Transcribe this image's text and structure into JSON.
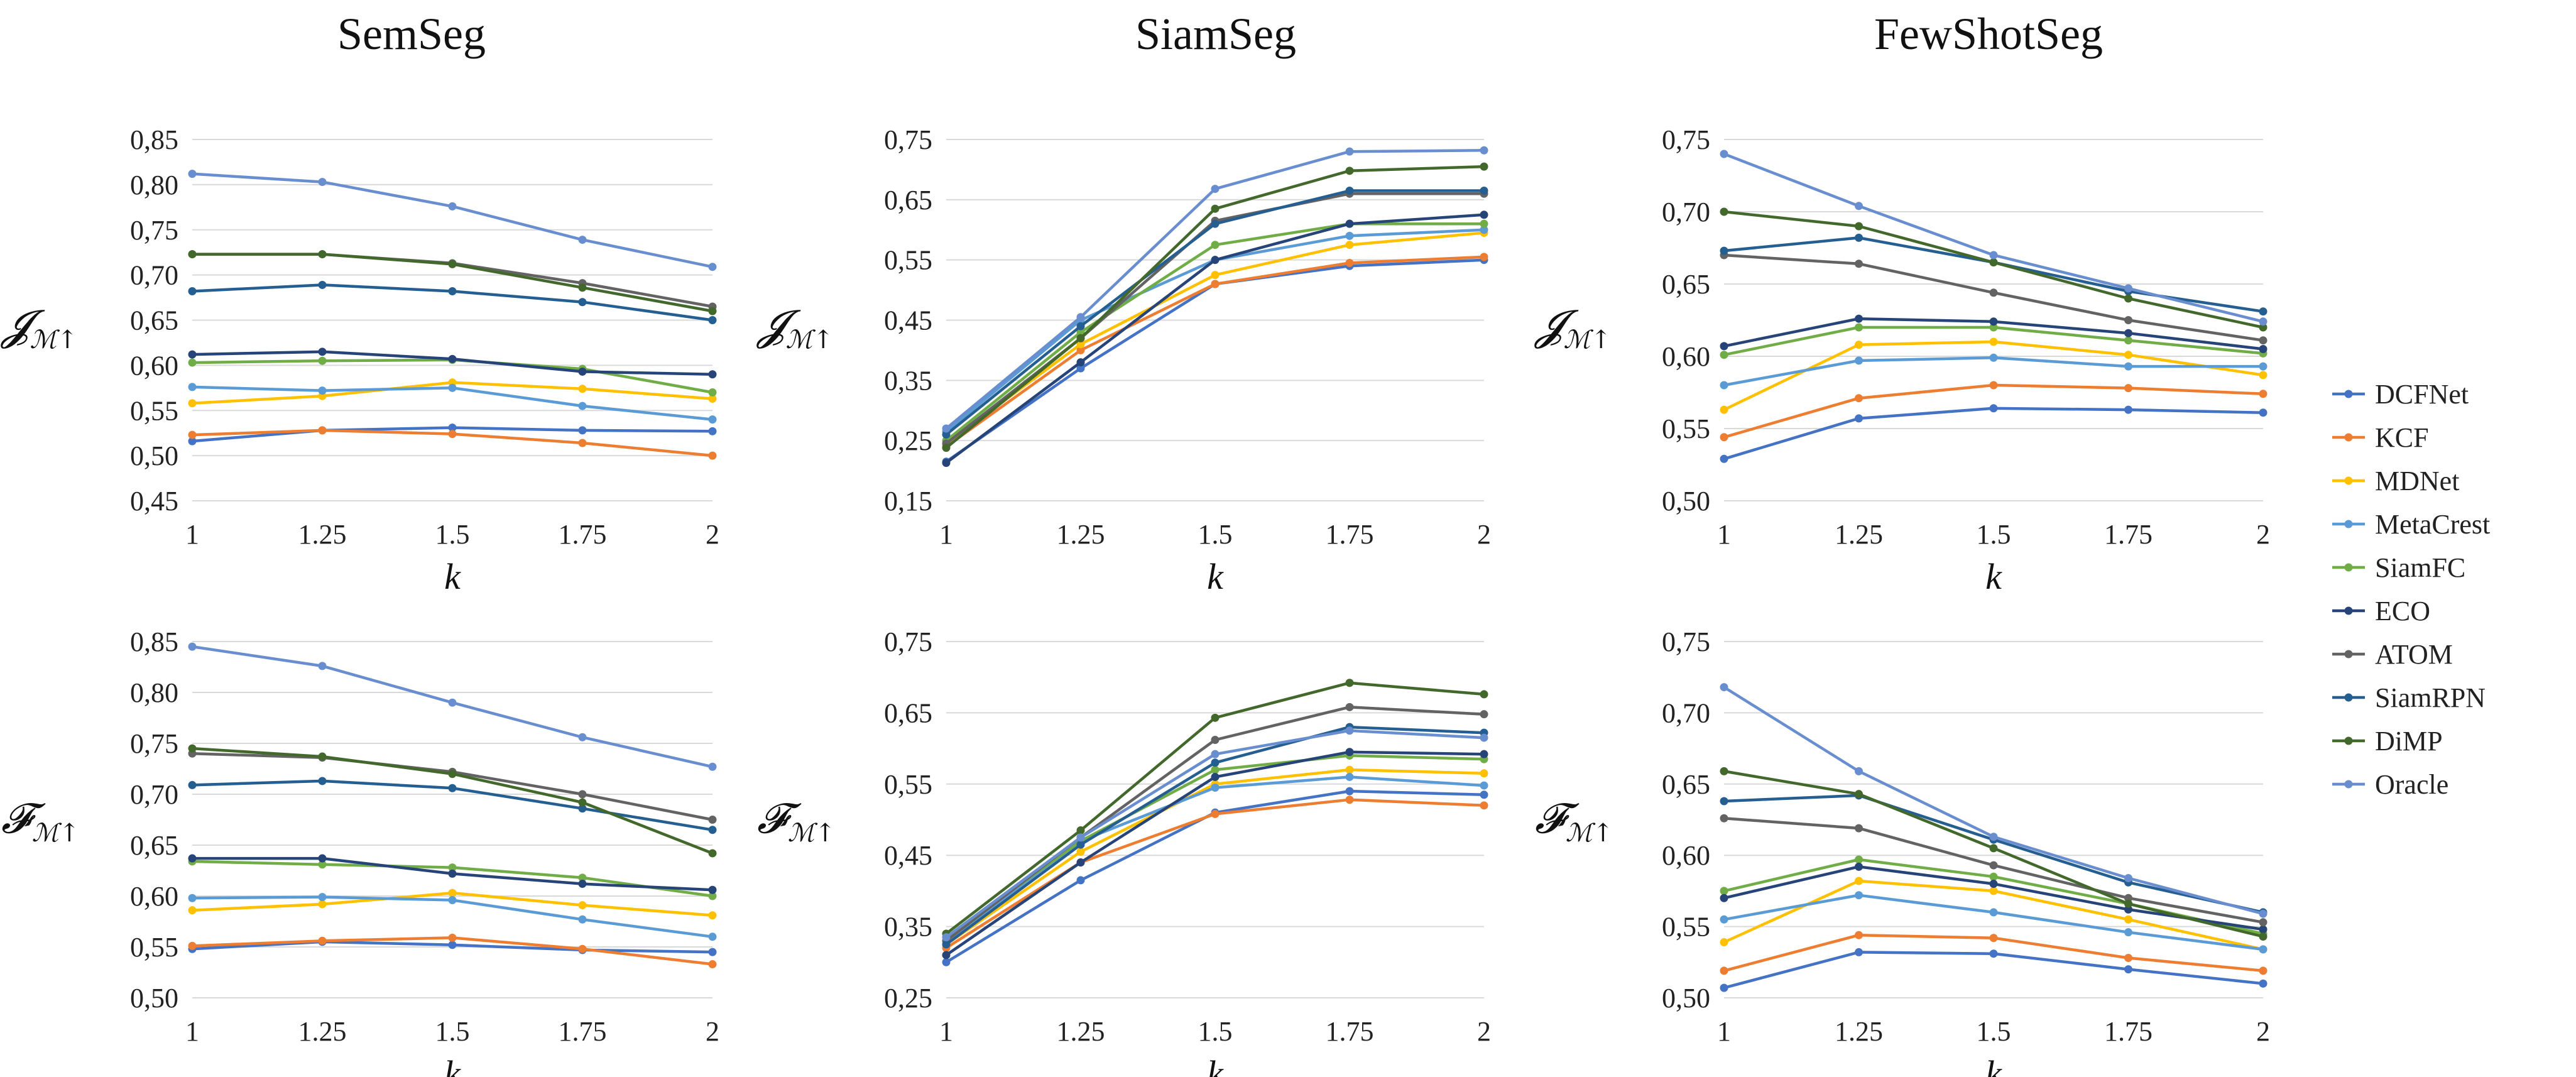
{
  "column_titles": [
    "SemSeg",
    "SiamSeg",
    "FewShotSeg"
  ],
  "row_metrics": [
    {
      "symbol": "𝓙",
      "subscript": "ℳ↑"
    },
    {
      "symbol": "𝓕",
      "subscript": "ℳ↑"
    }
  ],
  "legend": [
    {
      "name": "DCFNet",
      "color": "#4472C4"
    },
    {
      "name": "KCF",
      "color": "#ED7D31"
    },
    {
      "name": "MDNet",
      "color": "#FFC000"
    },
    {
      "name": "MetaCrest",
      "color": "#5B9BD5"
    },
    {
      "name": "SiamFC",
      "color": "#70AD47"
    },
    {
      "name": "ECO",
      "color": "#264478"
    },
    {
      "name": "ATOM",
      "color": "#636363"
    },
    {
      "name": "SiamRPN",
      "color": "#255E91"
    },
    {
      "name": "DiMP",
      "color": "#43682B"
    },
    {
      "name": "Oracle",
      "color": "#698ED0"
    }
  ],
  "chart_data": [
    {
      "type": "line",
      "title": "SemSeg",
      "xlabel": "k",
      "ylabel": "J_M↑",
      "categories": [
        "1",
        "1.25",
        "1.5",
        "1.75",
        "2"
      ],
      "yticks": [
        "0,45",
        "0,50",
        "0,55",
        "0,60",
        "0,65",
        "0,70",
        "0,75",
        "0,80",
        "0,85"
      ],
      "ylim": [
        0.45,
        0.85
      ],
      "series": [
        {
          "name": "DCFNet",
          "values": [
            0.516,
            0.528,
            0.531,
            0.528,
            0.527
          ]
        },
        {
          "name": "KCF",
          "values": [
            0.523,
            0.528,
            0.524,
            0.514,
            0.5
          ]
        },
        {
          "name": "MDNet",
          "values": [
            0.558,
            0.566,
            0.581,
            0.574,
            0.563
          ]
        },
        {
          "name": "MetaCrest",
          "values": [
            0.576,
            0.572,
            0.575,
            0.555,
            0.54
          ]
        },
        {
          "name": "SiamFC",
          "values": [
            0.603,
            0.605,
            0.606,
            0.596,
            0.57
          ]
        },
        {
          "name": "ECO",
          "values": [
            0.612,
            0.615,
            0.607,
            0.593,
            0.59
          ]
        },
        {
          "name": "ATOM",
          "values": [
            0.723,
            0.723,
            0.713,
            0.691,
            0.665
          ]
        },
        {
          "name": "SiamRPN",
          "values": [
            0.682,
            0.689,
            0.682,
            0.67,
            0.65
          ]
        },
        {
          "name": "DiMP",
          "values": [
            0.723,
            0.723,
            0.712,
            0.686,
            0.66
          ]
        },
        {
          "name": "Oracle",
          "values": [
            0.812,
            0.803,
            0.776,
            0.739,
            0.709
          ]
        }
      ]
    },
    {
      "type": "line",
      "title": "SiamSeg",
      "xlabel": "k",
      "ylabel": "J_M↑",
      "categories": [
        "1",
        "1.25",
        "1.5",
        "1.75",
        "2"
      ],
      "yticks": [
        "0,15",
        "0,25",
        "0,35",
        "0,45",
        "0,55",
        "0,65",
        "0,75"
      ],
      "ylim": [
        0.15,
        0.75
      ],
      "series": [
        {
          "name": "DCFNet",
          "values": [
            0.215,
            0.37,
            0.51,
            0.54,
            0.55
          ]
        },
        {
          "name": "KCF",
          "values": [
            0.24,
            0.4,
            0.51,
            0.545,
            0.555
          ]
        },
        {
          "name": "MDNet",
          "values": [
            0.245,
            0.41,
            0.525,
            0.575,
            0.595
          ]
        },
        {
          "name": "MetaCrest",
          "values": [
            0.265,
            0.45,
            0.55,
            0.59,
            0.6
          ]
        },
        {
          "name": "SiamFC",
          "values": [
            0.25,
            0.43,
            0.575,
            0.61,
            0.61
          ]
        },
        {
          "name": "ECO",
          "values": [
            0.213,
            0.38,
            0.55,
            0.61,
            0.625
          ]
        },
        {
          "name": "ATOM",
          "values": [
            0.245,
            0.42,
            0.615,
            0.66,
            0.66
          ]
        },
        {
          "name": "SiamRPN",
          "values": [
            0.26,
            0.44,
            0.61,
            0.665,
            0.665
          ]
        },
        {
          "name": "DiMP",
          "values": [
            0.238,
            0.42,
            0.635,
            0.698,
            0.705
          ]
        },
        {
          "name": "Oracle",
          "values": [
            0.27,
            0.455,
            0.668,
            0.73,
            0.732
          ]
        }
      ]
    },
    {
      "type": "line",
      "title": "FewShotSeg",
      "xlabel": "k",
      "ylabel": "J_M↑",
      "categories": [
        "1",
        "1.25",
        "1.5",
        "1.75",
        "2"
      ],
      "yticks": [
        "0,50",
        "0,55",
        "0,60",
        "0,65",
        "0,70",
        "0,75"
      ],
      "ylim": [
        0.5,
        0.75
      ],
      "series": [
        {
          "name": "DCFNet",
          "values": [
            0.529,
            0.557,
            0.564,
            0.563,
            0.561
          ]
        },
        {
          "name": "KCF",
          "values": [
            0.544,
            0.571,
            0.58,
            0.578,
            0.574
          ]
        },
        {
          "name": "MDNet",
          "values": [
            0.563,
            0.608,
            0.61,
            0.601,
            0.587
          ]
        },
        {
          "name": "MetaCrest",
          "values": [
            0.58,
            0.597,
            0.599,
            0.593,
            0.593
          ]
        },
        {
          "name": "SiamFC",
          "values": [
            0.601,
            0.62,
            0.62,
            0.611,
            0.602
          ]
        },
        {
          "name": "ECO",
          "values": [
            0.607,
            0.626,
            0.624,
            0.616,
            0.605
          ]
        },
        {
          "name": "ATOM",
          "values": [
            0.67,
            0.664,
            0.644,
            0.625,
            0.611
          ]
        },
        {
          "name": "SiamRPN",
          "values": [
            0.673,
            0.682,
            0.665,
            0.645,
            0.631
          ]
        },
        {
          "name": "DiMP",
          "values": [
            0.7,
            0.69,
            0.665,
            0.64,
            0.62
          ]
        },
        {
          "name": "Oracle",
          "values": [
            0.74,
            0.704,
            0.67,
            0.647,
            0.624
          ]
        }
      ]
    },
    {
      "type": "line",
      "title": "SemSeg",
      "xlabel": "k",
      "ylabel": "F_M↑",
      "categories": [
        "1",
        "1.25",
        "1.5",
        "1.75",
        "2"
      ],
      "yticks": [
        "0,50",
        "0,55",
        "0,60",
        "0,65",
        "0,70",
        "0,75",
        "0,80",
        "0,85"
      ],
      "ylim": [
        0.5,
        0.85
      ],
      "series": [
        {
          "name": "DCFNet",
          "values": [
            0.548,
            0.555,
            0.552,
            0.547,
            0.545
          ]
        },
        {
          "name": "KCF",
          "values": [
            0.551,
            0.556,
            0.559,
            0.548,
            0.533
          ]
        },
        {
          "name": "MDNet",
          "values": [
            0.586,
            0.592,
            0.603,
            0.591,
            0.581
          ]
        },
        {
          "name": "MetaCrest",
          "values": [
            0.598,
            0.599,
            0.596,
            0.577,
            0.56
          ]
        },
        {
          "name": "SiamFC",
          "values": [
            0.634,
            0.631,
            0.628,
            0.618,
            0.6
          ]
        },
        {
          "name": "ECO",
          "values": [
            0.637,
            0.637,
            0.622,
            0.612,
            0.606
          ]
        },
        {
          "name": "ATOM",
          "values": [
            0.74,
            0.736,
            0.722,
            0.7,
            0.675
          ]
        },
        {
          "name": "SiamRPN",
          "values": [
            0.709,
            0.713,
            0.706,
            0.686,
            0.665
          ]
        },
        {
          "name": "DiMP",
          "values": [
            0.745,
            0.737,
            0.72,
            0.692,
            0.642
          ]
        },
        {
          "name": "Oracle",
          "values": [
            0.845,
            0.826,
            0.79,
            0.756,
            0.727
          ]
        }
      ]
    },
    {
      "type": "line",
      "title": "SiamSeg",
      "xlabel": "k",
      "ylabel": "F_M↑",
      "categories": [
        "1",
        "1.25",
        "1.5",
        "1.75",
        "2"
      ],
      "yticks": [
        "0,25",
        "0,35",
        "0,45",
        "0,55",
        "0,65",
        "0,75"
      ],
      "ylim": [
        0.25,
        0.75
      ],
      "series": [
        {
          "name": "DCFNet",
          "values": [
            0.3,
            0.415,
            0.51,
            0.54,
            0.535
          ]
        },
        {
          "name": "KCF",
          "values": [
            0.32,
            0.44,
            0.508,
            0.528,
            0.52
          ]
        },
        {
          "name": "MDNet",
          "values": [
            0.325,
            0.455,
            0.55,
            0.57,
            0.565
          ]
        },
        {
          "name": "MetaCrest",
          "values": [
            0.33,
            0.47,
            0.545,
            0.56,
            0.548
          ]
        },
        {
          "name": "SiamFC",
          "values": [
            0.335,
            0.47,
            0.57,
            0.59,
            0.585
          ]
        },
        {
          "name": "ECO",
          "values": [
            0.31,
            0.44,
            0.56,
            0.595,
            0.592
          ]
        },
        {
          "name": "ATOM",
          "values": [
            0.33,
            0.475,
            0.612,
            0.658,
            0.648
          ]
        },
        {
          "name": "SiamRPN",
          "values": [
            0.325,
            0.465,
            0.58,
            0.63,
            0.622
          ]
        },
        {
          "name": "DiMP",
          "values": [
            0.34,
            0.485,
            0.643,
            0.692,
            0.676
          ]
        },
        {
          "name": "Oracle",
          "values": [
            0.335,
            0.475,
            0.592,
            0.625,
            0.615
          ]
        }
      ]
    },
    {
      "type": "line",
      "title": "FewShotSeg",
      "xlabel": "k",
      "ylabel": "F_M↑",
      "categories": [
        "1",
        "1.25",
        "1.5",
        "1.75",
        "2"
      ],
      "yticks": [
        "0,50",
        "0,55",
        "0,60",
        "0,65",
        "0,70",
        "0,75"
      ],
      "ylim": [
        0.5,
        0.75
      ],
      "series": [
        {
          "name": "DCFNet",
          "values": [
            0.507,
            0.532,
            0.531,
            0.52,
            0.51
          ]
        },
        {
          "name": "KCF",
          "values": [
            0.519,
            0.544,
            0.542,
            0.528,
            0.519
          ]
        },
        {
          "name": "MDNet",
          "values": [
            0.539,
            0.582,
            0.575,
            0.555,
            0.534
          ]
        },
        {
          "name": "MetaCrest",
          "values": [
            0.555,
            0.572,
            0.56,
            0.546,
            0.534
          ]
        },
        {
          "name": "SiamFC",
          "values": [
            0.575,
            0.597,
            0.585,
            0.566,
            0.545
          ]
        },
        {
          "name": "ECO",
          "values": [
            0.57,
            0.592,
            0.58,
            0.562,
            0.548
          ]
        },
        {
          "name": "ATOM",
          "values": [
            0.626,
            0.619,
            0.593,
            0.57,
            0.553
          ]
        },
        {
          "name": "SiamRPN",
          "values": [
            0.638,
            0.642,
            0.611,
            0.581,
            0.56
          ]
        },
        {
          "name": "DiMP",
          "values": [
            0.659,
            0.643,
            0.605,
            0.566,
            0.543
          ]
        },
        {
          "name": "Oracle",
          "values": [
            0.718,
            0.659,
            0.613,
            0.584,
            0.559
          ]
        }
      ]
    }
  ]
}
